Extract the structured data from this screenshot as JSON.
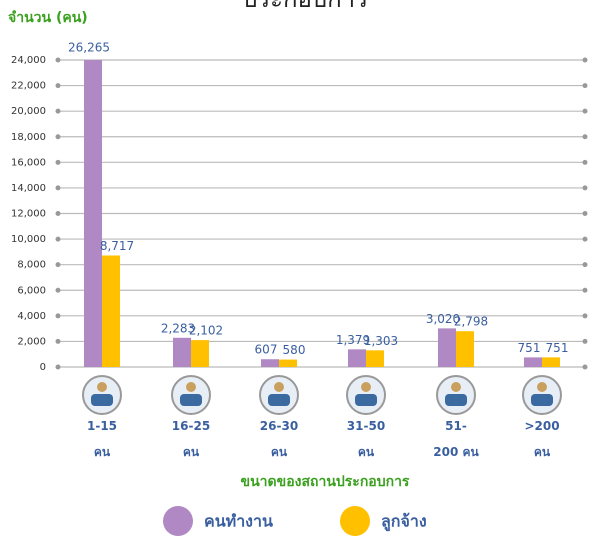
{
  "chart_data": {
    "type": "bar",
    "title": "ประกอบการ",
    "y_label": "จำนวน (คน)",
    "x_label": "ขนาดของสถานประกอบการ",
    "categories": [
      "1-15 คน",
      "16-25 คน",
      "26-30 คน",
      "31-50 คน",
      "51-200 คน",
      ">200 คน"
    ],
    "series": [
      {
        "name": "คนทำงาน",
        "color": "#b088c4",
        "values": [
          26265,
          2283,
          607,
          1379,
          3020,
          751
        ],
        "value_labels": [
          "26,265",
          "2,283",
          "607",
          "1,379",
          "3,020",
          "751"
        ]
      },
      {
        "name": "ลูกจ้าง",
        "color": "#ffc000",
        "values": [
          8717,
          2102,
          580,
          1303,
          2798,
          751
        ],
        "value_labels": [
          "8,717",
          "2,102",
          "580",
          "1,303",
          "2,798",
          "751"
        ]
      }
    ],
    "ylim": [
      0,
      24000
    ],
    "yticks": [
      0,
      {
        "value": 2000,
        "label": "2,000"
      },
      {
        "value": 4000,
        "label": "4,000"
      },
      {
        "value": 6000,
        "label": "6,000"
      },
      {
        "value": 8000,
        "label": "8,000"
      },
      {
        "value": 10000,
        "label": "10,000"
      },
      {
        "value": 12000,
        "label": "12,000"
      },
      {
        "value": 14000,
        "label": "14,000"
      },
      {
        "value": 16000,
        "label": "16,000"
      },
      {
        "value": 18000,
        "label": "18,000"
      },
      {
        "value": 20000,
        "label": "20,000"
      },
      {
        "value": 22000,
        "label": "22,000"
      },
      {
        "value": 24000,
        "label": "24,000"
      }
    ],
    "grid": true,
    "legend": "bottom"
  }
}
